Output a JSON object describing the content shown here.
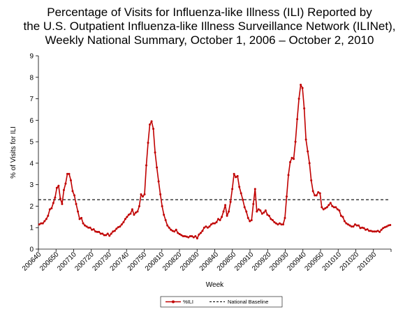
{
  "chart_data": {
    "type": "line",
    "title_lines": [
      "Percentage of Visits for Influenza-like Illness (ILI) Reported by",
      "the U.S. Outpatient Influenza-like Illness Surveillance Network (ILINet),",
      "Weekly National Summary, October 1, 2006 – October 2, 2010"
    ],
    "xlabel": "Week",
    "ylabel": "% of Visits for ILI",
    "ylim": [
      0,
      9
    ],
    "yticks": [
      0,
      1,
      2,
      3,
      4,
      5,
      6,
      7,
      8,
      9
    ],
    "xtick_labels": [
      "200640",
      "200650",
      "200710",
      "200720",
      "200730",
      "200740",
      "200750",
      "200810",
      "200820",
      "200830",
      "200840",
      "200850",
      "200910",
      "200920",
      "200930",
      "200940",
      "200950",
      "201010",
      "201020",
      "201030"
    ],
    "grid": false,
    "legend_position": "bottom",
    "series": [
      {
        "name": "%ILI",
        "color": "#c00000",
        "values": [
          1.15,
          1.2,
          1.2,
          1.3,
          1.4,
          1.55,
          1.85,
          1.9,
          2.15,
          2.4,
          2.85,
          2.95,
          2.35,
          2.1,
          2.75,
          3.05,
          3.5,
          3.5,
          3.2,
          2.7,
          2.5,
          2.1,
          1.75,
          1.4,
          1.45,
          1.2,
          1.1,
          1.05,
          1.0,
          1.0,
          0.9,
          0.92,
          0.82,
          0.8,
          0.8,
          0.72,
          0.72,
          0.65,
          0.65,
          0.72,
          0.62,
          0.72,
          0.82,
          0.85,
          0.95,
          1.02,
          1.05,
          1.15,
          1.25,
          1.4,
          1.5,
          1.6,
          1.65,
          1.85,
          1.6,
          1.7,
          1.75,
          2.0,
          2.55,
          2.45,
          2.55,
          3.9,
          4.95,
          5.8,
          5.95,
          5.6,
          4.5,
          3.8,
          3.15,
          2.55,
          2.0,
          1.6,
          1.35,
          1.1,
          1.0,
          0.9,
          0.85,
          0.82,
          0.9,
          0.75,
          0.7,
          0.65,
          0.6,
          0.6,
          0.58,
          0.55,
          0.6,
          0.6,
          0.55,
          0.6,
          0.5,
          0.68,
          0.75,
          0.85,
          1.0,
          1.05,
          1.0,
          1.05,
          1.15,
          1.2,
          1.2,
          1.25,
          1.4,
          1.35,
          1.5,
          1.75,
          2.05,
          1.55,
          1.75,
          2.2,
          2.8,
          3.5,
          3.35,
          3.4,
          2.9,
          2.6,
          2.3,
          1.95,
          1.75,
          1.45,
          1.3,
          1.35,
          2.1,
          2.8,
          1.75,
          1.85,
          1.8,
          1.65,
          1.7,
          1.8,
          1.6,
          1.55,
          1.4,
          1.35,
          1.25,
          1.2,
          1.15,
          1.2,
          1.15,
          1.15,
          1.45,
          2.45,
          3.45,
          4.05,
          4.25,
          4.2,
          5.0,
          6.05,
          7.0,
          7.65,
          7.5,
          6.55,
          5.1,
          4.55,
          4.0,
          3.2,
          2.7,
          2.5,
          2.5,
          2.65,
          2.6,
          1.95,
          1.85,
          1.9,
          1.95,
          2.05,
          2.15,
          2.0,
          1.95,
          1.95,
          1.85,
          1.8,
          1.55,
          1.5,
          1.3,
          1.2,
          1.15,
          1.1,
          1.05,
          1.05,
          1.15,
          1.1,
          1.1,
          0.98,
          1.0,
          0.98,
          0.9,
          0.92,
          0.85,
          0.85,
          0.82,
          0.82,
          0.82,
          0.85,
          0.8,
          0.9,
          0.98,
          1.02,
          1.05,
          1.1,
          1.12
        ]
      },
      {
        "name": "National Baseline",
        "color": "#000000",
        "values": [
          2.3
        ]
      }
    ]
  }
}
